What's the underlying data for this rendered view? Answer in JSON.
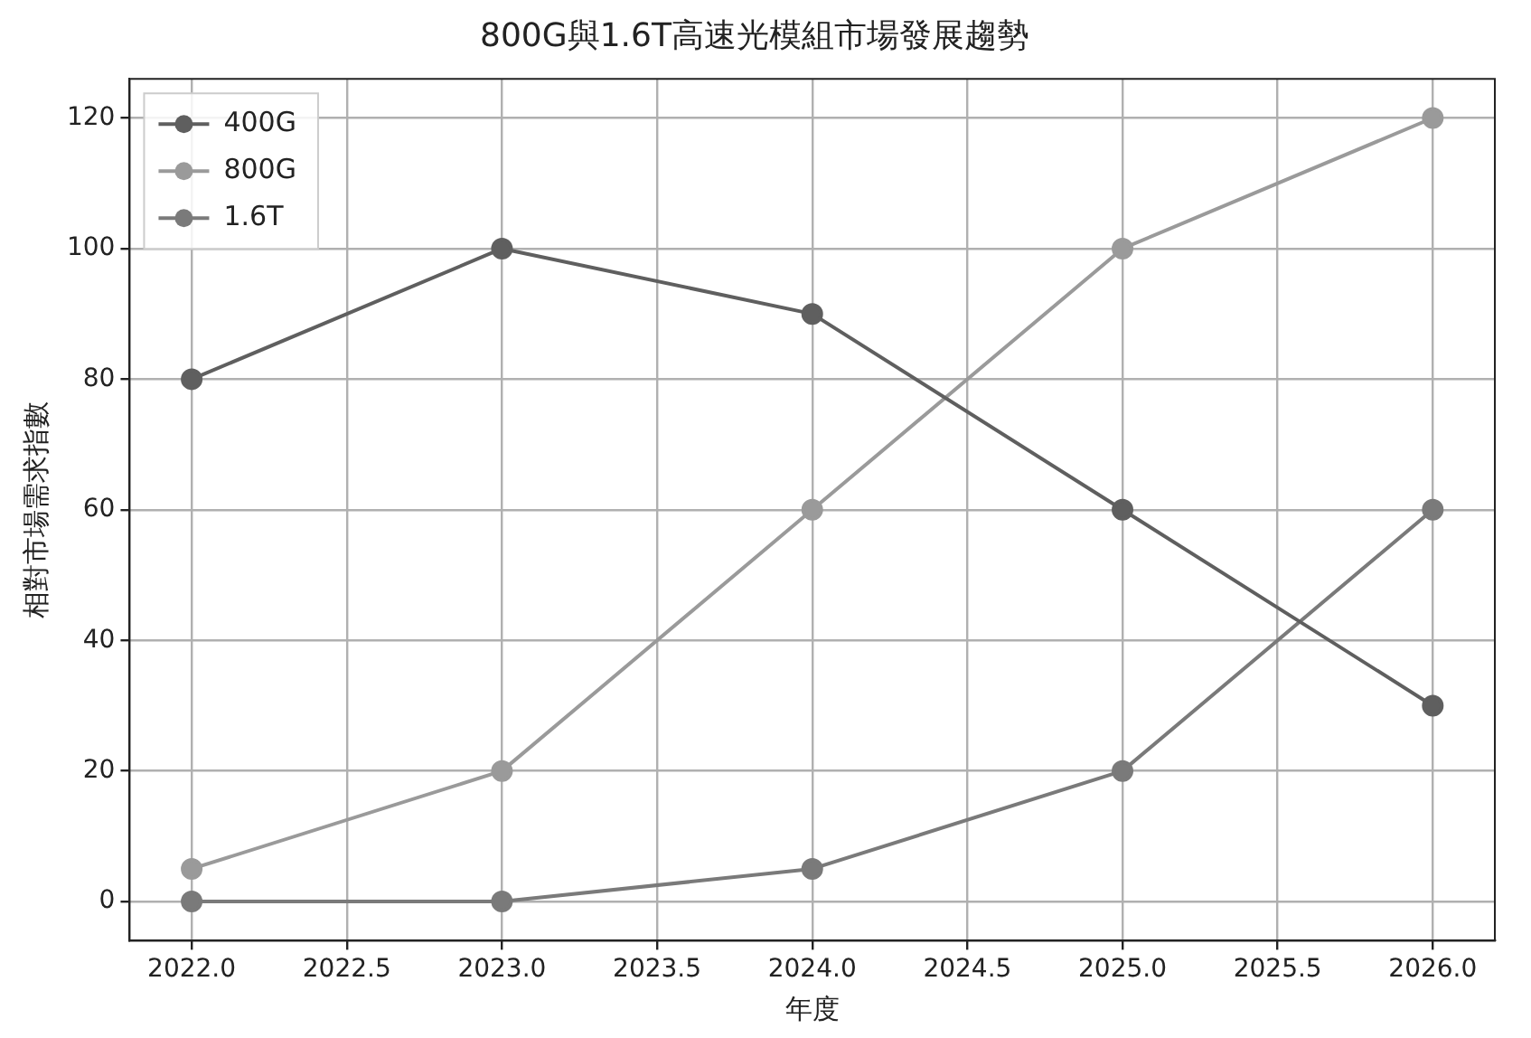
{
  "chart_data": {
    "type": "line",
    "title": "800G與1.6T高速光模組市場發展趨勢",
    "xlabel": "年度",
    "ylabel": "相對市場需求指數",
    "x": [
      2022,
      2023,
      2024,
      2025,
      2026
    ],
    "series": [
      {
        "name": "400G",
        "color": "#5f5f5f",
        "values": [
          80,
          100,
          90,
          60,
          30
        ]
      },
      {
        "name": "800G",
        "color": "#9a9a9a",
        "values": [
          5,
          20,
          60,
          100,
          120
        ]
      },
      {
        "name": "1.6T",
        "color": "#7a7a7a",
        "values": [
          0,
          0,
          5,
          20,
          60
        ]
      }
    ],
    "xlim": [
      2021.8,
      2026.2
    ],
    "xticks": [
      {
        "value": 2022,
        "label": "2022.0"
      },
      {
        "value": 2022.5,
        "label": "2022.5"
      },
      {
        "value": 2023,
        "label": "2023.0"
      },
      {
        "value": 2023.5,
        "label": "2023.5"
      },
      {
        "value": 2024,
        "label": "2024.0"
      },
      {
        "value": 2024.5,
        "label": "2024.5"
      },
      {
        "value": 2025,
        "label": "2025.0"
      },
      {
        "value": 2025.5,
        "label": "2025.5"
      },
      {
        "value": 2026,
        "label": "2026.0"
      }
    ],
    "ylim": [
      -6,
      126
    ],
    "yticks": [
      0,
      20,
      40,
      60,
      80,
      100,
      120
    ],
    "grid": true,
    "legend": "top left",
    "marker": "circle",
    "line_style": "solid"
  }
}
